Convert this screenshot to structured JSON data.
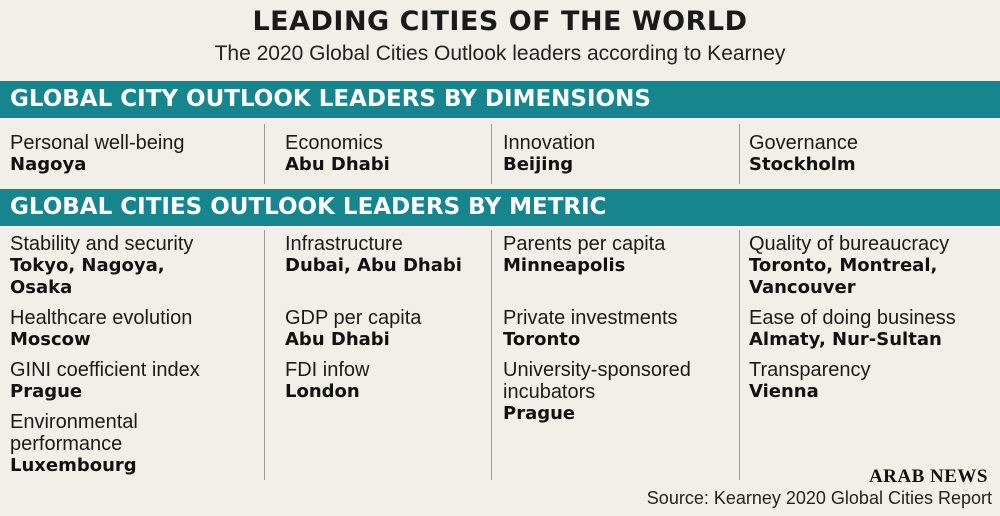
{
  "title": "LEADING CITIES OF THE WORLD",
  "subtitle": "The 2020 Global Cities Outlook leaders according to Kearney",
  "colors": {
    "band": "#16858e",
    "background": "#f1efe8"
  },
  "dimensions_header": "GLOBAL CITY OUTLOOK LEADERS BY DIMENSIONS",
  "dimensions": [
    {
      "label": "Personal well-being",
      "city": "Nagoya"
    },
    {
      "label": "Economics",
      "city": "Abu Dhabi"
    },
    {
      "label": "Innovation",
      "city": "Beijing"
    },
    {
      "label": "Governance",
      "city": "Stockholm"
    }
  ],
  "metric_header": "GLOBAL CITIES OUTLOOK LEADERS BY METRIC",
  "metrics": [
    [
      {
        "label": "Stability and security",
        "cities": "Tokyo, Nagoya, Osaka"
      },
      {
        "label": "Healthcare evolution",
        "cities": "Moscow"
      },
      {
        "label": "GINI coefficient index",
        "cities": "Prague"
      },
      {
        "label": "Environmental performance",
        "cities": "Luxembourg"
      }
    ],
    [
      {
        "label": "Infrastructure",
        "cities": "Dubai, Abu Dhabi"
      },
      {
        "label": "GDP per capita",
        "cities": "Abu Dhabi"
      },
      {
        "label": "FDI infow",
        "cities": "London"
      }
    ],
    [
      {
        "label": "Parents per capita",
        "cities": "Minneapolis"
      },
      {
        "label": "Private investments",
        "cities": "Toronto"
      },
      {
        "label": "University-sponsored incubators",
        "cities": "Prague"
      }
    ],
    [
      {
        "label": "Quality of bureaucracy",
        "cities": "Toronto, Montreal, Vancouver"
      },
      {
        "label": "Ease of doing business",
        "cities": "Almaty, Nur-Sultan"
      },
      {
        "label": "Transparency",
        "cities": "Vienna"
      }
    ]
  ],
  "logo": "ARAB NEWS",
  "source": "Source: Kearney 2020 Global Cities Report"
}
